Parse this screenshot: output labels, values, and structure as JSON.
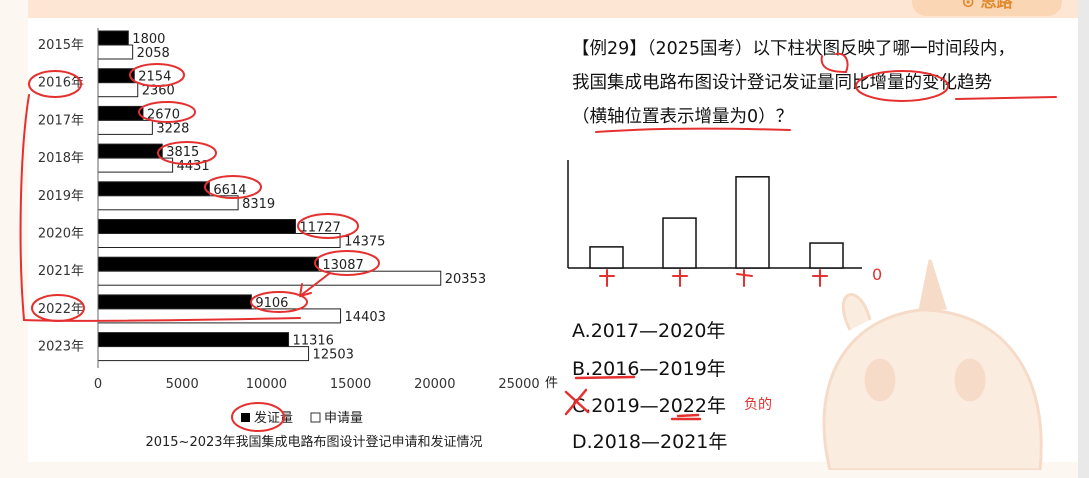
{
  "header": {
    "badge": "⊙ 思路"
  },
  "question": {
    "line1": "【例29】（2025国考）以下柱状图反映了哪一时间段内，",
    "line2": "我国集成电路布图设计登记发证量同比增量的变化趋势",
    "line3": "（横轴位置表示增量为0）？"
  },
  "options": {
    "a": "A.2017—2020年",
    "b": "B.2016—2019年",
    "c": "C.2019—2022年",
    "d": "D.2018—2021年"
  },
  "note": "负的",
  "mini_chart": {
    "bars": [
      0.22,
      0.52,
      0.95,
      0.26
    ],
    "axis_label": "0"
  },
  "colors": {
    "annotation": "#e53030",
    "issued": "#000000",
    "applied": "#ffffff"
  },
  "chart_data": {
    "type": "bar",
    "orientation": "horizontal",
    "title": "2015~2023年我国集成电路布图设计登记申请和发证情况",
    "unit": "件",
    "categories": [
      "2015年",
      "2016年",
      "2017年",
      "2018年",
      "2019年",
      "2020年",
      "2021年",
      "2022年",
      "2023年"
    ],
    "series": [
      {
        "name": "发证量",
        "color": "#000000",
        "values": [
          1800,
          2154,
          2670,
          3815,
          6614,
          11727,
          13087,
          9106,
          11316
        ]
      },
      {
        "name": "申请量",
        "color": "#ffffff",
        "values": [
          2058,
          2360,
          3228,
          4431,
          8319,
          14375,
          20353,
          14403,
          12503
        ]
      }
    ],
    "xticks": [
      "0",
      "5000",
      "10000",
      "15000",
      "20000",
      "25000"
    ],
    "xlim": [
      0,
      25000
    ],
    "legend": "bottom"
  }
}
